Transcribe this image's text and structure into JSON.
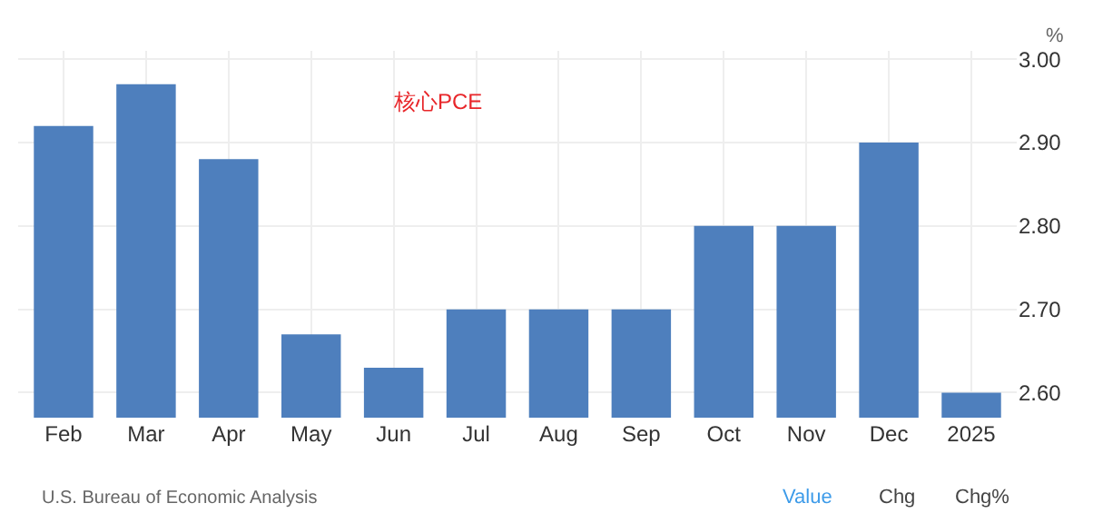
{
  "chart_data": {
    "type": "bar",
    "categories": [
      "Feb",
      "Mar",
      "Apr",
      "May",
      "Jun",
      "Jul",
      "Aug",
      "Sep",
      "Oct",
      "Nov",
      "Dec",
      "2025"
    ],
    "values": [
      2.92,
      2.97,
      2.88,
      2.67,
      2.63,
      2.7,
      2.7,
      2.7,
      2.8,
      2.8,
      2.9,
      2.6
    ],
    "color": "#4e7fbd",
    "ylabel": "%",
    "ylim": [
      2.57,
      3.01
    ],
    "yticks": [
      {
        "value": 2.6,
        "label": "2.60"
      },
      {
        "value": 2.7,
        "label": "2.70"
      },
      {
        "value": 2.8,
        "label": "2.80"
      },
      {
        "value": 2.9,
        "label": "2.90"
      },
      {
        "value": 3.0,
        "label": "3.00"
      }
    ],
    "grid": true,
    "annotations": [
      "核心PCE",
      "U.S. Bureau of Economic Analysis",
      "Value",
      "Chg",
      "Chg%"
    ]
  }
}
